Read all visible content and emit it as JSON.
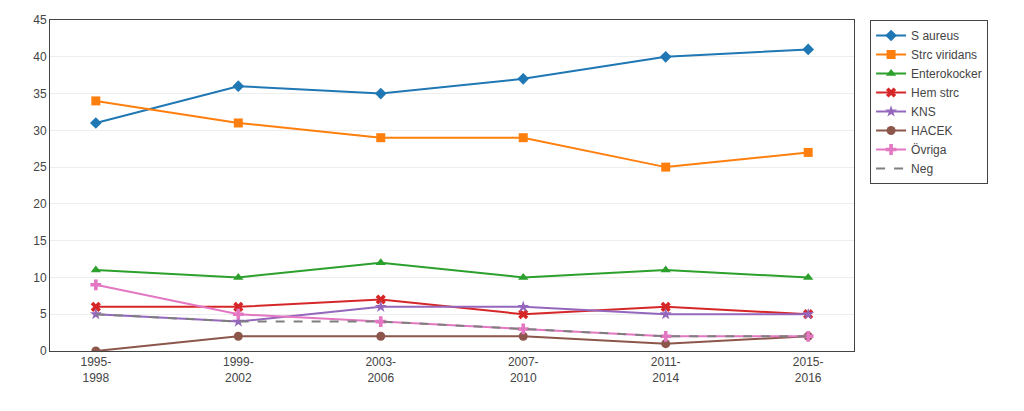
{
  "chart_data": {
    "type": "line",
    "categories": [
      "1995-\n1998",
      "1999-\n2002",
      "2003-\n2006",
      "2007-\n2010",
      "2011-\n2014",
      "2015-\n2016"
    ],
    "series": [
      {
        "name": "S aureus",
        "marker": "diamond",
        "values": [
          31,
          36,
          35,
          37,
          40,
          41
        ]
      },
      {
        "name": "Strc viridans",
        "marker": "square",
        "values": [
          34,
          31,
          29,
          29,
          25,
          27
        ]
      },
      {
        "name": "Enterokocker",
        "marker": "triangle-up",
        "values": [
          11,
          10,
          12,
          10,
          11,
          10
        ]
      },
      {
        "name": "Hem strc",
        "marker": "x",
        "values": [
          6,
          6,
          7,
          5,
          6,
          5
        ]
      },
      {
        "name": "KNS",
        "marker": "star",
        "values": [
          5,
          4,
          6,
          6,
          5,
          5
        ]
      },
      {
        "name": "HACEK",
        "marker": "circle",
        "values": [
          0,
          2,
          2,
          2,
          1,
          2
        ]
      },
      {
        "name": "Övriga",
        "marker": "cross",
        "values": [
          9,
          5,
          4,
          3,
          2,
          2
        ]
      },
      {
        "name": "Neg",
        "line_style": "dash",
        "values": [
          5,
          4,
          4,
          3,
          2,
          2
        ]
      }
    ],
    "ylim": [
      0,
      45
    ],
    "yticks": [
      0,
      5,
      10,
      15,
      20,
      25,
      30,
      35,
      40,
      45
    ],
    "grid": true,
    "legend": "right"
  }
}
